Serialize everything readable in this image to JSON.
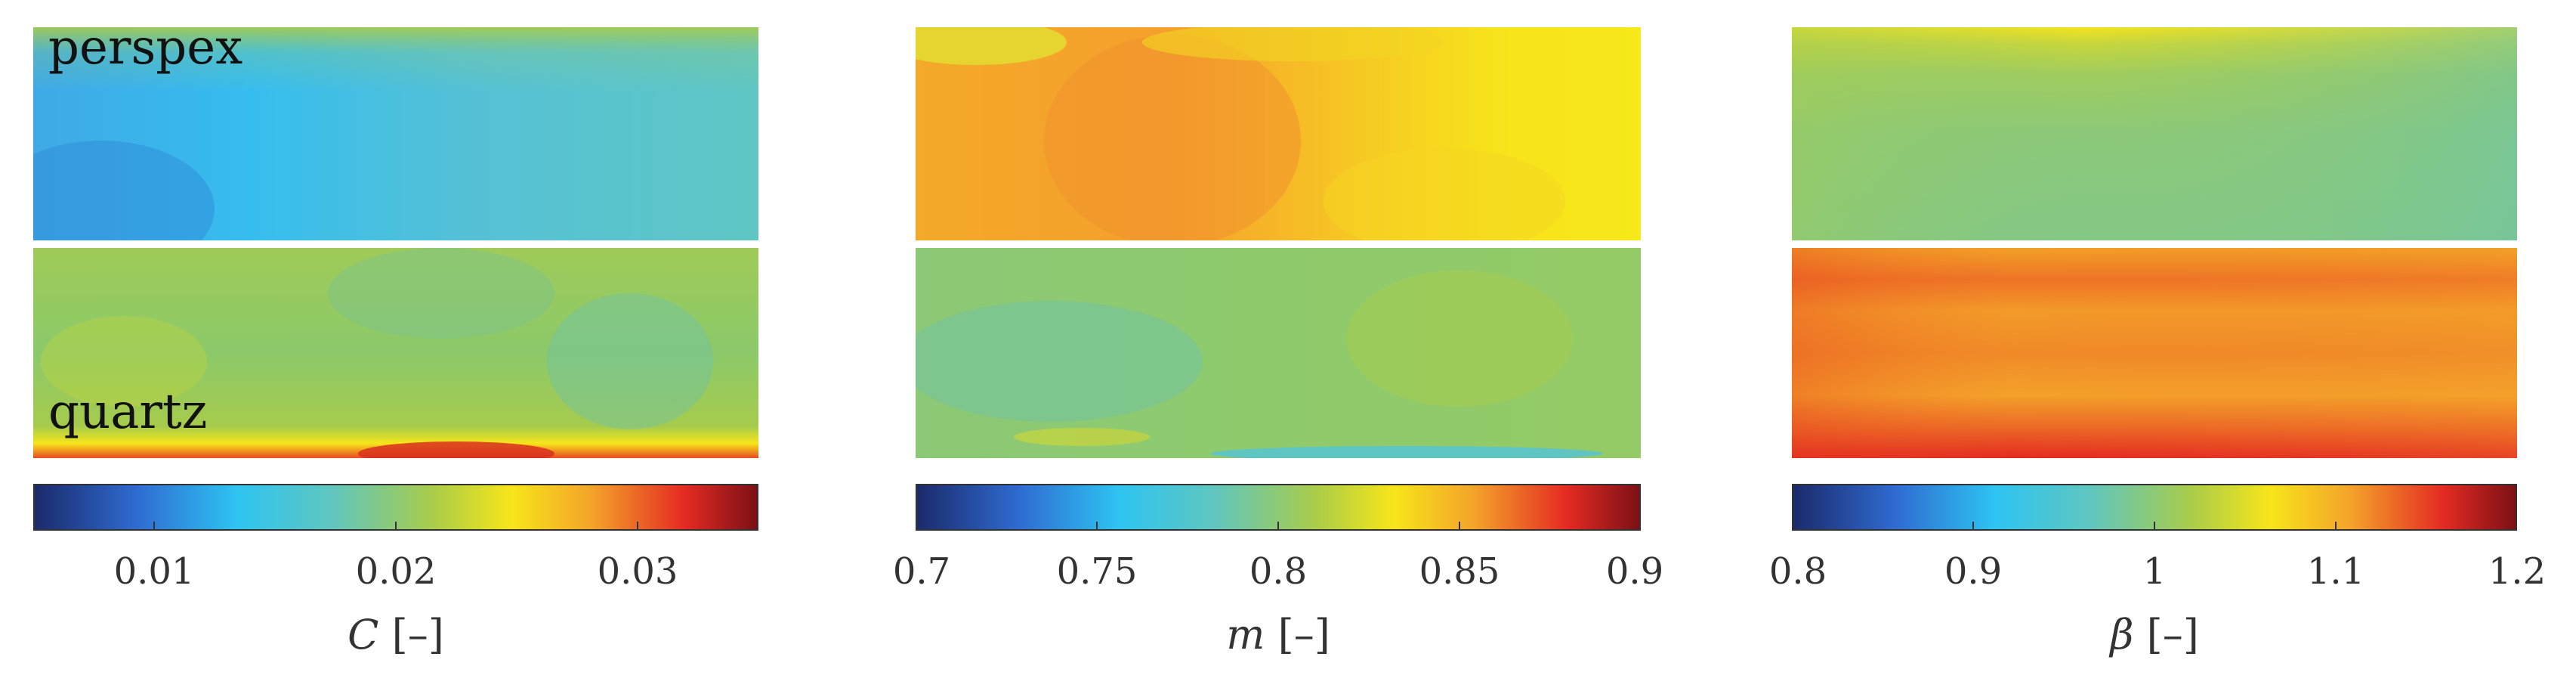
{
  "chart_data": [
    {
      "type": "heatmap",
      "variable": "C",
      "unit": "[–]",
      "colorbar_range": [
        0.005,
        0.035
      ],
      "colorbar_ticks": [
        "0.01",
        "0.02",
        "0.03"
      ],
      "colorbar_tick_values": [
        0.01,
        0.02,
        0.03
      ],
      "rows": [
        {
          "label": "perspex",
          "level_mean": 0.015
        },
        {
          "label": "quartz",
          "level_mean": 0.021
        }
      ]
    },
    {
      "type": "heatmap",
      "variable": "m",
      "unit": "[–]",
      "colorbar_range": [
        0.7,
        0.9
      ],
      "colorbar_ticks": [
        "0.7",
        "0.75",
        "0.8",
        "0.85",
        "0.9"
      ],
      "colorbar_tick_values": [
        0.7,
        0.75,
        0.8,
        0.85,
        0.9
      ],
      "rows": [
        {
          "level_mean": 0.84
        },
        {
          "level_mean": 0.8
        }
      ]
    },
    {
      "type": "heatmap",
      "variable": "β",
      "unit": "[–]",
      "colorbar_range": [
        0.8,
        1.2
      ],
      "colorbar_ticks": [
        "0.8",
        "0.9",
        "1",
        "1.1",
        "1.2"
      ],
      "colorbar_tick_values": [
        0.8,
        0.9,
        1.0,
        1.1,
        1.2
      ],
      "rows": [
        {
          "level_mean": 0.99
        },
        {
          "level_mean": 1.1
        }
      ]
    }
  ],
  "colormap": [
    "#1b2a6b",
    "#2f6ad0",
    "#2ec4f2",
    "#5fc6c0",
    "#a9cc4a",
    "#f7e51a",
    "#f4a42a",
    "#e42a22",
    "#7c1015"
  ]
}
